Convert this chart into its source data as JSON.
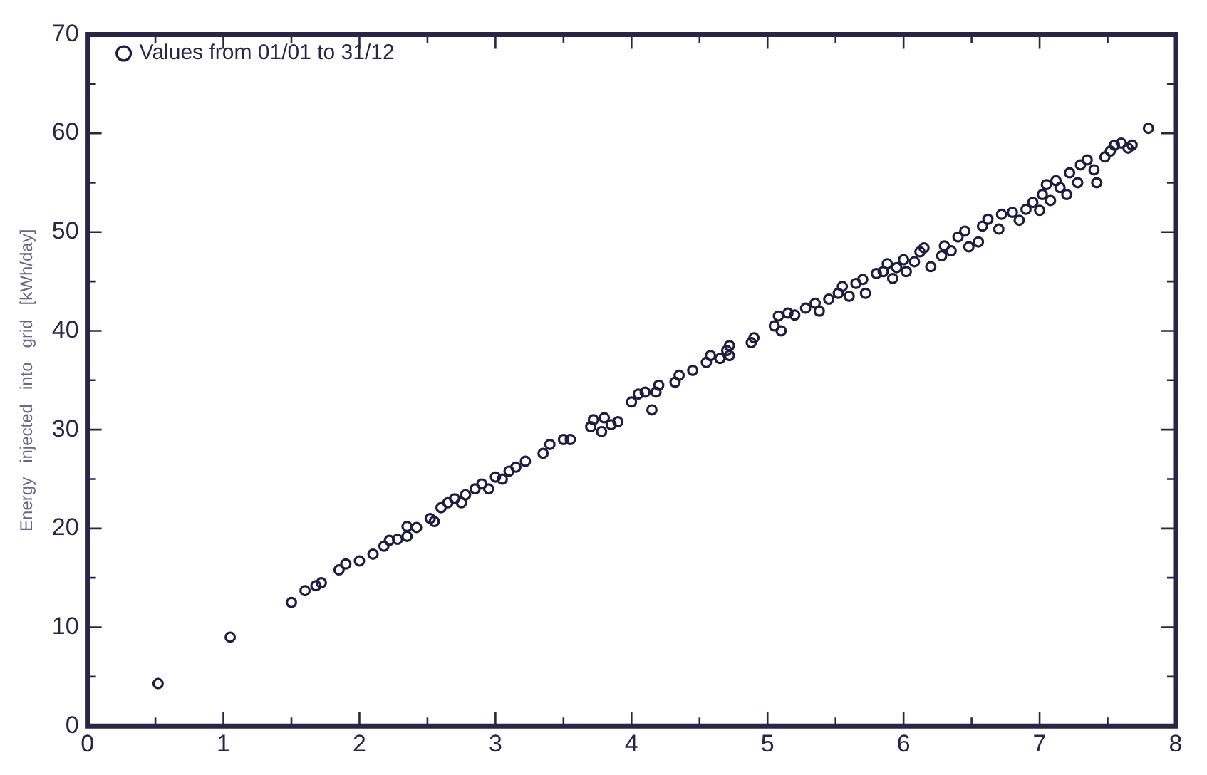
{
  "chart_data": {
    "type": "scatter",
    "ylabel": "Energy   injected   into   grid   [kWh/day]",
    "xlim": [
      0,
      8
    ],
    "ylim": [
      0,
      70
    ],
    "xticks": [
      0,
      {
        "value": 0.5,
        "label": null
      },
      1,
      {
        "value": 1.5,
        "label": null
      },
      2,
      {
        "value": 2.5,
        "label": null
      },
      3,
      {
        "value": 3.5,
        "label": null
      },
      4,
      {
        "value": 4.5,
        "label": null
      },
      5,
      {
        "value": 5.5,
        "label": null
      },
      6,
      {
        "value": 6.5,
        "label": null
      },
      7,
      {
        "value": 7.5,
        "label": null
      },
      8
    ],
    "yticks": [
      0,
      {
        "value": 5,
        "label": null
      },
      10,
      {
        "value": 15,
        "label": null
      },
      20,
      {
        "value": 25,
        "label": null
      },
      30,
      {
        "value": 35,
        "label": null
      },
      40,
      {
        "value": 45,
        "label": null
      },
      50,
      {
        "value": 55,
        "label": null
      },
      60,
      {
        "value": 65,
        "label": null
      },
      70
    ],
    "grid": false,
    "legend": "top left",
    "marker": "circle",
    "series": [
      {
        "name": "Values from 01/01 to 31/12",
        "color": "#201c40",
        "x": [
          0.52,
          1.05,
          1.5,
          1.6,
          1.68,
          1.72,
          1.85,
          1.9,
          2.0,
          2.1,
          2.18,
          2.22,
          2.28,
          2.35,
          2.35,
          2.42,
          2.52,
          2.55,
          2.6,
          2.65,
          2.7,
          2.75,
          2.78,
          2.85,
          2.9,
          2.95,
          3.0,
          3.05,
          3.1,
          3.15,
          3.22,
          3.35,
          3.4,
          3.5,
          3.55,
          3.7,
          3.72,
          3.78,
          3.8,
          3.85,
          3.9,
          4.0,
          4.05,
          4.1,
          4.15,
          4.18,
          4.2,
          4.32,
          4.35,
          4.45,
          4.55,
          4.58,
          4.65,
          4.7,
          4.72,
          4.72,
          4.88,
          4.9,
          5.05,
          5.08,
          5.1,
          5.15,
          5.2,
          5.28,
          5.35,
          5.38,
          5.45,
          5.52,
          5.55,
          5.6,
          5.65,
          5.7,
          5.72,
          5.8,
          5.85,
          5.88,
          5.92,
          5.95,
          6.0,
          6.02,
          6.08,
          6.12,
          6.15,
          6.2,
          6.28,
          6.3,
          6.35,
          6.4,
          6.45,
          6.48,
          6.55,
          6.58,
          6.62,
          6.7,
          6.72,
          6.8,
          6.85,
          6.9,
          6.95,
          7.0,
          7.02,
          7.05,
          7.08,
          7.12,
          7.15,
          7.2,
          7.22,
          7.28,
          7.3,
          7.35,
          7.4,
          7.42,
          7.48,
          7.52,
          7.55,
          7.6,
          7.65,
          7.68,
          7.8
        ],
        "values": [
          4.3,
          9.0,
          12.5,
          13.7,
          14.2,
          14.5,
          15.8,
          16.4,
          16.7,
          17.4,
          18.2,
          18.8,
          18.9,
          19.2,
          20.2,
          20.1,
          21.0,
          20.7,
          22.1,
          22.6,
          23.0,
          22.6,
          23.4,
          24.0,
          24.5,
          24.0,
          25.2,
          25.0,
          25.8,
          26.2,
          26.8,
          27.6,
          28.5,
          29.0,
          29.0,
          30.3,
          31.0,
          29.8,
          31.2,
          30.5,
          30.8,
          32.8,
          33.6,
          33.8,
          32.0,
          33.8,
          34.5,
          34.8,
          35.5,
          36.0,
          36.8,
          37.5,
          37.2,
          38.0,
          38.5,
          37.5,
          38.8,
          39.3,
          40.5,
          41.5,
          40.0,
          41.8,
          41.6,
          42.3,
          42.8,
          42.0,
          43.2,
          43.8,
          44.5,
          43.5,
          44.8,
          45.2,
          43.8,
          45.8,
          46.0,
          46.8,
          45.3,
          46.4,
          47.2,
          46.0,
          47.0,
          48.0,
          48.4,
          46.5,
          47.6,
          48.6,
          48.1,
          49.5,
          50.1,
          48.5,
          49.0,
          50.6,
          51.3,
          50.3,
          51.8,
          52.0,
          51.2,
          52.3,
          53.0,
          52.2,
          53.8,
          54.8,
          53.2,
          55.2,
          54.5,
          53.8,
          56.0,
          55.0,
          56.8,
          57.3,
          56.3,
          55.0,
          57.6,
          58.2,
          58.8,
          59.0,
          58.5,
          58.8,
          60.5
        ]
      }
    ]
  }
}
